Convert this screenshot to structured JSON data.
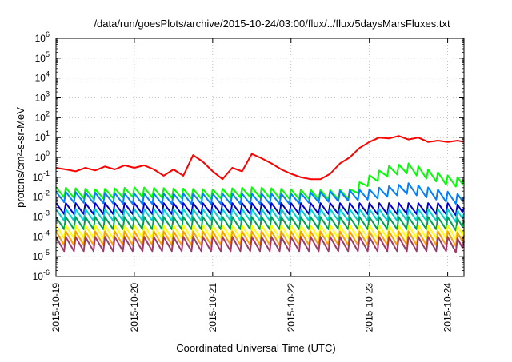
{
  "chart_data": {
    "type": "line",
    "title": "/data/run/goesPlots/archive/2015-10-24/03:00/flux/../flux/5daysMarsFluxes.txt",
    "xlabel": "Coordinated Universal Time (UTC)",
    "ylabel": "protons/cm²-s-sr-MeV",
    "yscale": "log",
    "ylim": [
      1e-06,
      1000000.0
    ],
    "xlim": [
      "2015-10-19T00:00",
      "2015-10-24T05:00"
    ],
    "grid": true,
    "legend": "none",
    "x_ticks": [
      "2015-10-19",
      "2015-10-20",
      "2015-10-21",
      "2015-10-22",
      "2015-10-23",
      "2015-10-24"
    ],
    "y_ticks": [
      {
        "base": "10",
        "exp": "-6"
      },
      {
        "base": "10",
        "exp": "-5"
      },
      {
        "base": "10",
        "exp": "-4"
      },
      {
        "base": "10",
        "exp": "-3"
      },
      {
        "base": "10",
        "exp": "-2"
      },
      {
        "base": "10",
        "exp": "-1"
      },
      {
        "base": "10",
        "exp": "0"
      },
      {
        "base": "10",
        "exp": "1"
      },
      {
        "base": "10",
        "exp": "2"
      },
      {
        "base": "10",
        "exp": "3"
      },
      {
        "base": "10",
        "exp": "4"
      },
      {
        "base": "10",
        "exp": "5"
      },
      {
        "base": "10",
        "exp": "6"
      }
    ],
    "series": [
      {
        "color": "#ff0000",
        "values": [
          [
            "2015-10-19T00:00",
            0.3
          ],
          [
            "2015-10-19T03:00",
            0.25
          ],
          [
            "2015-10-19T06:00",
            0.2
          ],
          [
            "2015-10-19T09:00",
            0.3
          ],
          [
            "2015-10-19T12:00",
            0.22
          ],
          [
            "2015-10-19T15:00",
            0.35
          ],
          [
            "2015-10-19T18:00",
            0.25
          ],
          [
            "2015-10-19T21:00",
            0.4
          ],
          [
            "2015-10-20T00:00",
            0.3
          ],
          [
            "2015-10-20T03:00",
            0.4
          ],
          [
            "2015-10-20T06:00",
            0.25
          ],
          [
            "2015-10-20T09:00",
            0.12
          ],
          [
            "2015-10-20T12:00",
            0.25
          ],
          [
            "2015-10-20T15:00",
            0.12
          ],
          [
            "2015-10-20T18:00",
            1.3
          ],
          [
            "2015-10-20T21:00",
            0.6
          ],
          [
            "2015-10-21T00:00",
            0.2
          ],
          [
            "2015-10-21T03:00",
            0.08
          ],
          [
            "2015-10-21T06:00",
            0.3
          ],
          [
            "2015-10-21T09:00",
            0.2
          ],
          [
            "2015-10-21T12:00",
            1.5
          ],
          [
            "2015-10-21T15:00",
            0.9
          ],
          [
            "2015-10-21T18:00",
            0.5
          ],
          [
            "2015-10-21T21:00",
            0.25
          ],
          [
            "2015-10-22T00:00",
            0.15
          ],
          [
            "2015-10-22T03:00",
            0.1
          ],
          [
            "2015-10-22T06:00",
            0.08
          ],
          [
            "2015-10-22T09:00",
            0.08
          ],
          [
            "2015-10-22T12:00",
            0.15
          ],
          [
            "2015-10-22T15:00",
            0.5
          ],
          [
            "2015-10-22T18:00",
            1.0
          ],
          [
            "2015-10-22T21:00",
            3.0
          ],
          [
            "2015-10-23T00:00",
            6.0
          ],
          [
            "2015-10-23T03:00",
            10.0
          ],
          [
            "2015-10-23T06:00",
            9.0
          ],
          [
            "2015-10-23T09:00",
            12.0
          ],
          [
            "2015-10-23T12:00",
            8.0
          ],
          [
            "2015-10-23T15:00",
            10.0
          ],
          [
            "2015-10-23T18:00",
            6.0
          ],
          [
            "2015-10-23T21:00",
            7.0
          ],
          [
            "2015-10-24T00:00",
            6.0
          ],
          [
            "2015-10-24T03:00",
            7.0
          ],
          [
            "2015-10-24T05:00",
            6.0
          ]
        ]
      },
      {
        "color": "#00ff00",
        "values": [
          [
            "2015-10-19T00:00",
            0.025
          ],
          [
            "2015-10-19T12:00",
            0.02
          ],
          [
            "2015-10-20T00:00",
            0.025
          ],
          [
            "2015-10-20T12:00",
            0.022
          ],
          [
            "2015-10-21T00:00",
            0.02
          ],
          [
            "2015-10-21T12:00",
            0.025
          ],
          [
            "2015-10-22T00:00",
            0.02
          ],
          [
            "2015-10-22T12:00",
            0.018
          ],
          [
            "2015-10-22T18:00",
            0.02
          ],
          [
            "2015-10-23T00:00",
            0.1
          ],
          [
            "2015-10-23T06:00",
            0.3
          ],
          [
            "2015-10-23T12:00",
            0.4
          ],
          [
            "2015-10-23T18:00",
            0.2
          ],
          [
            "2015-10-24T00:00",
            0.1
          ],
          [
            "2015-10-24T05:00",
            0.07
          ]
        ]
      },
      {
        "color": "#0080ff",
        "values": [
          [
            "2015-10-19T00:00",
            0.015
          ],
          [
            "2015-10-20T00:00",
            0.012
          ],
          [
            "2015-10-21T00:00",
            0.012
          ],
          [
            "2015-10-22T00:00",
            0.012
          ],
          [
            "2015-10-23T00:00",
            0.02
          ],
          [
            "2015-10-23T12:00",
            0.04
          ],
          [
            "2015-10-24T00:00",
            0.015
          ],
          [
            "2015-10-24T05:00",
            0.01
          ]
        ]
      },
      {
        "color": "#0000cc",
        "values": [
          [
            "2015-10-19T00:00",
            0.004
          ],
          [
            "2015-10-20T00:00",
            0.004
          ],
          [
            "2015-10-21T00:00",
            0.004
          ],
          [
            "2015-10-22T00:00",
            0.004
          ],
          [
            "2015-10-23T00:00",
            0.004
          ],
          [
            "2015-10-24T00:00",
            0.004
          ],
          [
            "2015-10-24T05:00",
            0.003
          ]
        ]
      },
      {
        "color": "#00d0d0",
        "values": [
          [
            "2015-10-19T00:00",
            0.002
          ],
          [
            "2015-10-20T00:00",
            0.002
          ],
          [
            "2015-10-21T00:00",
            0.002
          ],
          [
            "2015-10-22T00:00",
            0.002
          ],
          [
            "2015-10-23T00:00",
            0.002
          ],
          [
            "2015-10-24T00:00",
            0.002
          ],
          [
            "2015-10-24T05:00",
            0.0015
          ]
        ]
      },
      {
        "color": "#00a050",
        "values": [
          [
            "2015-10-19T00:00",
            0.0008
          ],
          [
            "2015-10-20T00:00",
            0.0008
          ],
          [
            "2015-10-21T00:00",
            0.0008
          ],
          [
            "2015-10-22T00:00",
            0.0008
          ],
          [
            "2015-10-23T00:00",
            0.0008
          ],
          [
            "2015-10-24T00:00",
            0.0008
          ],
          [
            "2015-10-24T05:00",
            0.0006
          ]
        ]
      },
      {
        "color": "#ffff00",
        "values": [
          [
            "2015-10-19T00:00",
            0.0003
          ],
          [
            "2015-10-20T00:00",
            0.0003
          ],
          [
            "2015-10-21T00:00",
            0.0003
          ],
          [
            "2015-10-22T00:00",
            0.0003
          ],
          [
            "2015-10-23T00:00",
            0.0003
          ],
          [
            "2015-10-24T00:00",
            0.0003
          ],
          [
            "2015-10-24T05:00",
            0.00025
          ]
        ]
      },
      {
        "color": "#ffa000",
        "values": [
          [
            "2015-10-19T00:00",
            0.00015
          ],
          [
            "2015-10-20T00:00",
            0.00015
          ],
          [
            "2015-10-21T00:00",
            0.00015
          ],
          [
            "2015-10-22T00:00",
            0.00015
          ],
          [
            "2015-10-23T00:00",
            0.00015
          ],
          [
            "2015-10-24T00:00",
            0.00015
          ],
          [
            "2015-10-24T05:00",
            0.00012
          ]
        ]
      },
      {
        "color": "#a03a6a",
        "values": [
          [
            "2015-10-19T00:00",
            8e-05
          ],
          [
            "2015-10-20T00:00",
            8e-05
          ],
          [
            "2015-10-21T00:00",
            8e-05
          ],
          [
            "2015-10-22T00:00",
            8e-05
          ],
          [
            "2015-10-23T00:00",
            8e-05
          ],
          [
            "2015-10-24T00:00",
            8e-05
          ],
          [
            "2015-10-24T05:00",
            6e-05
          ]
        ]
      }
    ]
  }
}
